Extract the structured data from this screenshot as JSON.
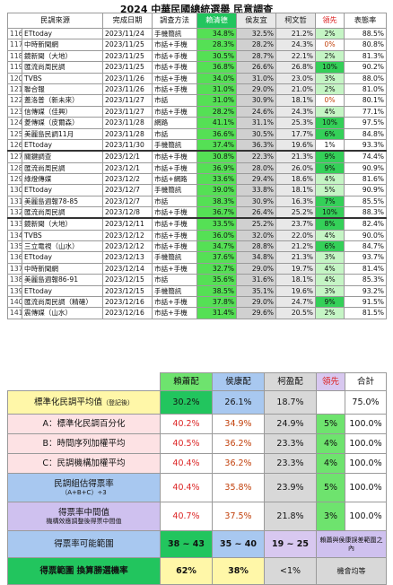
{
  "title": "2024 中華民國總統選舉 民意調查",
  "poll_table": {
    "headers": [
      "民調來源",
      "完成日期",
      "調查方法",
      "賴清德",
      "侯友宜",
      "柯文哲",
      "領先",
      "表態率"
    ],
    "rows": [
      {
        "n": "116",
        "src": "ETtoday",
        "date": "2023/11/24",
        "method": "手機簡訊",
        "lai": "34.8%",
        "hou": "32.5%",
        "ko": "21.2%",
        "lead": "2%",
        "rate": "88.5%"
      },
      {
        "n": "117",
        "src": "中時新聞網",
        "date": "2023/11/25",
        "method": "市話+手機",
        "lai": "28.3%",
        "hou": "28.2%",
        "ko": "24.3%",
        "lead": "0%",
        "rate": "80.8%"
      },
      {
        "n": "118",
        "src": "鏡新聞（大地）",
        "date": "2023/11/25",
        "method": "市話+手機",
        "lai": "30.5%",
        "hou": "28.7%",
        "ko": "22.1%",
        "lead": "2%",
        "rate": "81.3%"
      },
      {
        "n": "119",
        "src": "匯流尚周民調",
        "date": "2023/11/25",
        "method": "市話+手機",
        "lai": "36.8%",
        "hou": "26.6%",
        "ko": "26.8%",
        "lead": "10%",
        "rate": "90.2%"
      },
      {
        "n": "120",
        "src": "TVBS",
        "date": "2023/11/26",
        "method": "市話+手機",
        "lai": "34.0%",
        "hou": "31.0%",
        "ko": "23.0%",
        "lead": "3%",
        "rate": "88.0%"
      },
      {
        "n": "121",
        "src": "聯合報",
        "date": "2023/11/26",
        "method": "市話+手機",
        "lai": "31.0%",
        "hou": "29.0%",
        "ko": "21.0%",
        "lead": "2%",
        "rate": "81.0%"
      },
      {
        "n": "122",
        "src": "蓋洛普（新未來）",
        "date": "2023/11/27",
        "method": "市話",
        "lai": "31.0%",
        "hou": "30.9%",
        "ko": "18.1%",
        "lead": "0%",
        "rate": "80.1%"
      },
      {
        "n": "123",
        "src": "信傳媒（佳興）",
        "date": "2023/11/27",
        "method": "市話+手機",
        "lai": "28.2%",
        "hou": "24.6%",
        "ko": "24.3%",
        "lead": "4%",
        "rate": "77.1%"
      },
      {
        "n": "124",
        "src": "菱傳媒（皮爾森）",
        "date": "2023/11/28",
        "method": "網路",
        "lai": "41.1%",
        "hou": "31.1%",
        "ko": "25.3%",
        "lead": "10%",
        "rate": "97.5%"
      },
      {
        "n": "125",
        "src": "美麗島民調11月",
        "date": "2023/11/28",
        "method": "市話",
        "lai": "36.6%",
        "hou": "30.5%",
        "ko": "17.7%",
        "lead": "6%",
        "rate": "84.8%"
      },
      {
        "n": "126",
        "src": "ETtoday",
        "date": "2023/11/30",
        "method": "手機簡訊",
        "lai": "37.4%",
        "hou": "36.3%",
        "ko": "19.6%",
        "lead": "1%",
        "rate": "93.3%"
      },
      {
        "n": "127",
        "src": "關鍵調查",
        "date": "2023/12/1",
        "method": "市話+手機",
        "lai": "30.8%",
        "hou": "22.3%",
        "ko": "21.3%",
        "lead": "9%",
        "rate": "74.4%"
      },
      {
        "n": "128",
        "src": "匯流尚周民調",
        "date": "2023/12/1",
        "method": "市話+手機",
        "lai": "36.9%",
        "hou": "28.0%",
        "ko": "26.0%",
        "lead": "9%",
        "rate": "90.9%"
      },
      {
        "n": "129",
        "src": "綠燈傳媒",
        "date": "2023/12/2",
        "method": "市話+網路",
        "lai": "33.6%",
        "hou": "29.4%",
        "ko": "18.6%",
        "lead": "4%",
        "rate": "81.6%"
      },
      {
        "n": "130",
        "src": "ETtoday",
        "date": "2023/12/7",
        "method": "手機簡訊",
        "lai": "39.0%",
        "hou": "33.8%",
        "ko": "18.1%",
        "lead": "5%",
        "rate": "90.9%"
      },
      {
        "n": "131",
        "src": "美麗島週報78-85",
        "date": "2023/12/7",
        "method": "市話",
        "lai": "38.3%",
        "hou": "30.9%",
        "ko": "16.3%",
        "lead": "7%",
        "rate": "85.5%"
      },
      {
        "n": "132",
        "src": "匯流尚周民調",
        "date": "2023/12/8",
        "method": "市話+手機",
        "lai": "36.7%",
        "hou": "26.4%",
        "ko": "25.2%",
        "lead": "10%",
        "rate": "88.3%"
      },
      {
        "n": "133",
        "src": "鏡新聞（大地）",
        "date": "2023/12/11",
        "method": "市話+手機",
        "lai": "33.5%",
        "hou": "25.2%",
        "ko": "23.7%",
        "lead": "8%",
        "rate": "82.4%"
      },
      {
        "n": "134",
        "src": "TVBS",
        "date": "2023/12/12",
        "method": "市話+手機",
        "lai": "36.0%",
        "hou": "32.0%",
        "ko": "22.0%",
        "lead": "4%",
        "rate": "90.0%"
      },
      {
        "n": "135",
        "src": "三立電視（山水）",
        "date": "2023/12/12",
        "method": "市話+手機",
        "lai": "34.7%",
        "hou": "28.8%",
        "ko": "21.2%",
        "lead": "6%",
        "rate": "84.7%"
      },
      {
        "n": "136",
        "src": "ETtoday",
        "date": "2023/12/13",
        "method": "手機簡訊",
        "lai": "37.6%",
        "hou": "34.8%",
        "ko": "21.3%",
        "lead": "3%",
        "rate": "93.7%"
      },
      {
        "n": "137",
        "src": "中時新聞網",
        "date": "2023/12/14",
        "method": "市話+手機",
        "lai": "32.7%",
        "hou": "29.0%",
        "ko": "19.7%",
        "lead": "4%",
        "rate": "81.4%"
      },
      {
        "n": "138",
        "src": "美麗島週報86-91",
        "date": "2023/12/15",
        "method": "市話",
        "lai": "35.6%",
        "hou": "31.6%",
        "ko": "18.1%",
        "lead": "4%",
        "rate": "85.3%"
      },
      {
        "n": "139",
        "src": "ETtoday",
        "date": "2023/12/15",
        "method": "手機簡訊",
        "lai": "38.5%",
        "hou": "35.1%",
        "ko": "19.6%",
        "lead": "3%",
        "rate": "93.2%"
      },
      {
        "n": "140",
        "src": "匯流尚周民調（精確）",
        "date": "2023/12/16",
        "method": "市話+手機",
        "lai": "37.8%",
        "hou": "29.0%",
        "ko": "24.7%",
        "lead": "9%",
        "rate": "91.5%"
      },
      {
        "n": "141",
        "src": "震傳媒（山水）",
        "date": "2023/12/16",
        "method": "市話+手機",
        "lai": "31.4%",
        "hou": "29.6%",
        "ko": "20.5%",
        "lead": "2%",
        "rate": "81.5%"
      }
    ]
  },
  "summary": {
    "headers": [
      "賴蕭配",
      "侯康配",
      "柯盈配",
      "領先",
      "合計"
    ],
    "rows": [
      {
        "label": "標準化民調平均值",
        "note": "（登記後）",
        "lai": "30.2%",
        "hou": "26.1%",
        "ko": "18.7%",
        "lead": "",
        "total": "75.0%"
      },
      {
        "label": "A：標準化民調百分化",
        "note": "",
        "lai": "40.2%",
        "hou": "34.9%",
        "ko": "24.9%",
        "lead": "5%",
        "total": "100.0%"
      },
      {
        "label": "B：時間序列加權平均",
        "note": "",
        "lai": "40.5%",
        "hou": "36.2%",
        "ko": "23.3%",
        "lead": "4%",
        "total": "100.0%"
      },
      {
        "label": "C：民調機構加權平均",
        "note": "",
        "lai": "40.4%",
        "hou": "36.2%",
        "ko": "23.3%",
        "lead": "4%",
        "total": "100.0%"
      },
      {
        "label": "民調組估得票率",
        "note": "（A+B+C）÷3",
        "lai": "40.4%",
        "hou": "35.8%",
        "ko": "23.9%",
        "lead": "5%",
        "total": "100.0%"
      },
      {
        "label": "得票率中間值",
        "note": "機構效應調整後得票中間值",
        "lai": "40.7%",
        "hou": "37.5%",
        "ko": "21.8%",
        "lead": "3%",
        "total": "100.0%"
      },
      {
        "label": "得票率可能範圍",
        "note": "",
        "lai": "38 ~ 43",
        "hou": "35 ~ 40",
        "ko": "19 ~ 25",
        "lead": "",
        "total": "賴蕭與侯康誤差範圍之內"
      },
      {
        "label": "得票範圍 換算勝選機率",
        "note": "",
        "lai": "62%",
        "hou": "38%",
        "ko": "<1%",
        "lead": "",
        "total": "機會均等"
      }
    ]
  }
}
